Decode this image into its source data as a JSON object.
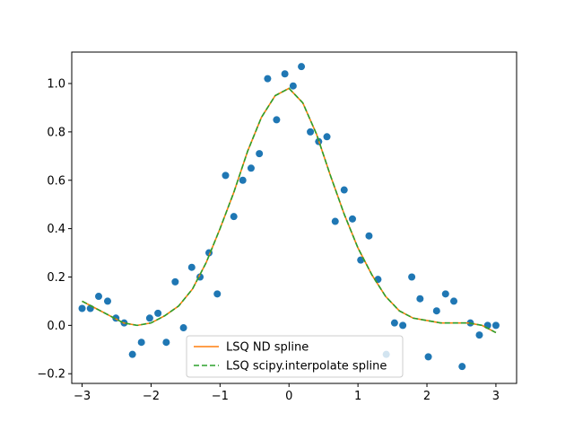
{
  "chart_data": {
    "type": "scatter",
    "title": "",
    "xlabel": "",
    "ylabel": "",
    "xlim": [
      -3.15,
      3.3
    ],
    "ylim": [
      -0.24,
      1.13
    ],
    "grid": false,
    "legend_position": "lower-center",
    "xticks": [
      {
        "value": -3,
        "label": "−3"
      },
      {
        "value": -2,
        "label": "−2"
      },
      {
        "value": -1,
        "label": "−1"
      },
      {
        "value": 0,
        "label": "0"
      },
      {
        "value": 1,
        "label": "1"
      },
      {
        "value": 2,
        "label": "2"
      },
      {
        "value": 3,
        "label": "3"
      }
    ],
    "yticks": [
      {
        "value": -0.2,
        "label": "−0.2"
      },
      {
        "value": 0.0,
        "label": "0.0"
      },
      {
        "value": 0.2,
        "label": "0.2"
      },
      {
        "value": 0.4,
        "label": "0.4"
      },
      {
        "value": 0.6,
        "label": "0.6"
      },
      {
        "value": 0.8,
        "label": "0.8"
      },
      {
        "value": 1.0,
        "label": "1.0"
      }
    ],
    "scatter": {
      "color": "#1f77b4",
      "points": [
        [
          -3.0,
          0.07
        ],
        [
          -2.88,
          0.07
        ],
        [
          -2.76,
          0.12
        ],
        [
          -2.63,
          0.1
        ],
        [
          -2.51,
          0.03
        ],
        [
          -2.39,
          0.01
        ],
        [
          -2.27,
          -0.12
        ],
        [
          -2.14,
          -0.07
        ],
        [
          -2.02,
          0.03
        ],
        [
          -1.9,
          0.05
        ],
        [
          -1.78,
          -0.07
        ],
        [
          -1.65,
          0.18
        ],
        [
          -1.53,
          -0.01
        ],
        [
          -1.41,
          0.24
        ],
        [
          -1.29,
          0.2
        ],
        [
          -1.16,
          0.3
        ],
        [
          -1.04,
          0.13
        ],
        [
          -0.92,
          0.62
        ],
        [
          -0.8,
          0.45
        ],
        [
          -0.67,
          0.6
        ],
        [
          -0.55,
          0.65
        ],
        [
          -0.43,
          0.71
        ],
        [
          -0.31,
          1.02
        ],
        [
          -0.18,
          0.85
        ],
        [
          -0.06,
          1.04
        ],
        [
          0.06,
          0.99
        ],
        [
          0.18,
          1.07
        ],
        [
          0.31,
          0.8
        ],
        [
          0.43,
          0.76
        ],
        [
          0.55,
          0.78
        ],
        [
          0.67,
          0.43
        ],
        [
          0.8,
          0.56
        ],
        [
          0.92,
          0.44
        ],
        [
          1.04,
          0.27
        ],
        [
          1.16,
          0.37
        ],
        [
          1.29,
          0.19
        ],
        [
          1.41,
          -0.12
        ],
        [
          1.53,
          0.01
        ],
        [
          1.65,
          0.0
        ],
        [
          1.78,
          0.2
        ],
        [
          1.9,
          0.11
        ],
        [
          2.02,
          -0.13
        ],
        [
          2.14,
          0.06
        ],
        [
          2.27,
          0.13
        ],
        [
          2.39,
          0.1
        ],
        [
          2.51,
          -0.17
        ],
        [
          2.63,
          0.01
        ],
        [
          2.76,
          -0.04
        ],
        [
          2.88,
          0.0
        ],
        [
          3.0,
          0.0
        ]
      ]
    },
    "series": [
      {
        "name": "LSQ ND spline",
        "color": "#ff7f0e",
        "dash": "solid",
        "x": [
          -3.0,
          -2.8,
          -2.6,
          -2.4,
          -2.2,
          -2.0,
          -1.8,
          -1.6,
          -1.4,
          -1.2,
          -1.0,
          -0.8,
          -0.6,
          -0.4,
          -0.2,
          0.0,
          0.2,
          0.4,
          0.6,
          0.8,
          1.0,
          1.2,
          1.4,
          1.6,
          1.8,
          2.0,
          2.2,
          2.4,
          2.6,
          2.8,
          3.0
        ],
        "y": [
          0.1,
          0.07,
          0.04,
          0.01,
          0.0,
          0.01,
          0.04,
          0.08,
          0.15,
          0.26,
          0.4,
          0.55,
          0.72,
          0.86,
          0.95,
          0.98,
          0.92,
          0.79,
          0.62,
          0.46,
          0.32,
          0.21,
          0.12,
          0.06,
          0.03,
          0.02,
          0.01,
          0.01,
          0.01,
          0.0,
          -0.03
        ]
      },
      {
        "name": "LSQ scipy.interpolate spline",
        "color": "#2ca02c",
        "dash": "dashed",
        "x": [
          -3.0,
          -2.8,
          -2.6,
          -2.4,
          -2.2,
          -2.0,
          -1.8,
          -1.6,
          -1.4,
          -1.2,
          -1.0,
          -0.8,
          -0.6,
          -0.4,
          -0.2,
          0.0,
          0.2,
          0.4,
          0.6,
          0.8,
          1.0,
          1.2,
          1.4,
          1.6,
          1.8,
          2.0,
          2.2,
          2.4,
          2.6,
          2.8,
          3.0
        ],
        "y": [
          0.1,
          0.07,
          0.04,
          0.01,
          0.0,
          0.01,
          0.04,
          0.08,
          0.15,
          0.26,
          0.4,
          0.55,
          0.72,
          0.86,
          0.95,
          0.98,
          0.92,
          0.79,
          0.62,
          0.46,
          0.32,
          0.21,
          0.12,
          0.06,
          0.03,
          0.02,
          0.01,
          0.01,
          0.01,
          0.0,
          -0.03
        ]
      }
    ]
  }
}
